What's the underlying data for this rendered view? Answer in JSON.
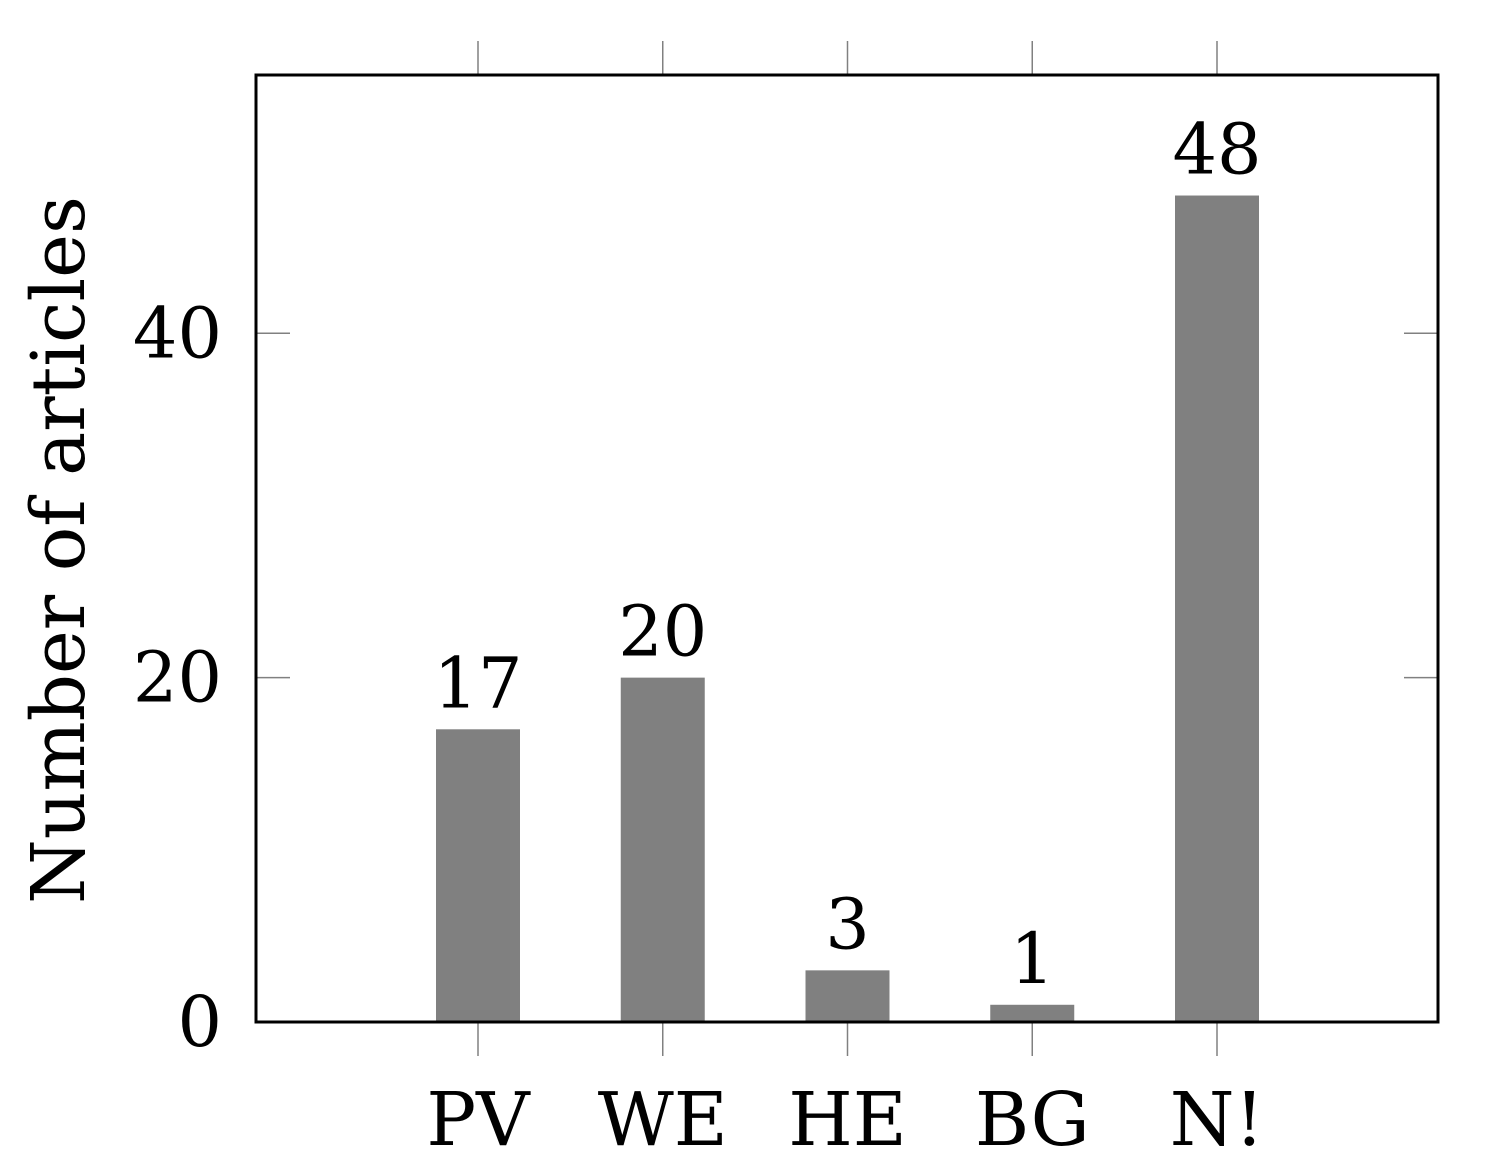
{
  "chart_data": {
    "type": "bar",
    "title": "",
    "xlabel": "",
    "ylabel": "Number of articles",
    "categories": [
      "PV",
      "WE",
      "HE",
      "BG",
      "N!"
    ],
    "values": [
      17,
      20,
      3,
      1,
      48
    ],
    "data_labels": [
      "17",
      "20",
      "3",
      "1",
      "48"
    ],
    "y_ticks": [
      0,
      20,
      40
    ],
    "ylim": [
      0,
      55
    ],
    "grid": false,
    "legend": "none",
    "bar_color": "#808080"
  }
}
